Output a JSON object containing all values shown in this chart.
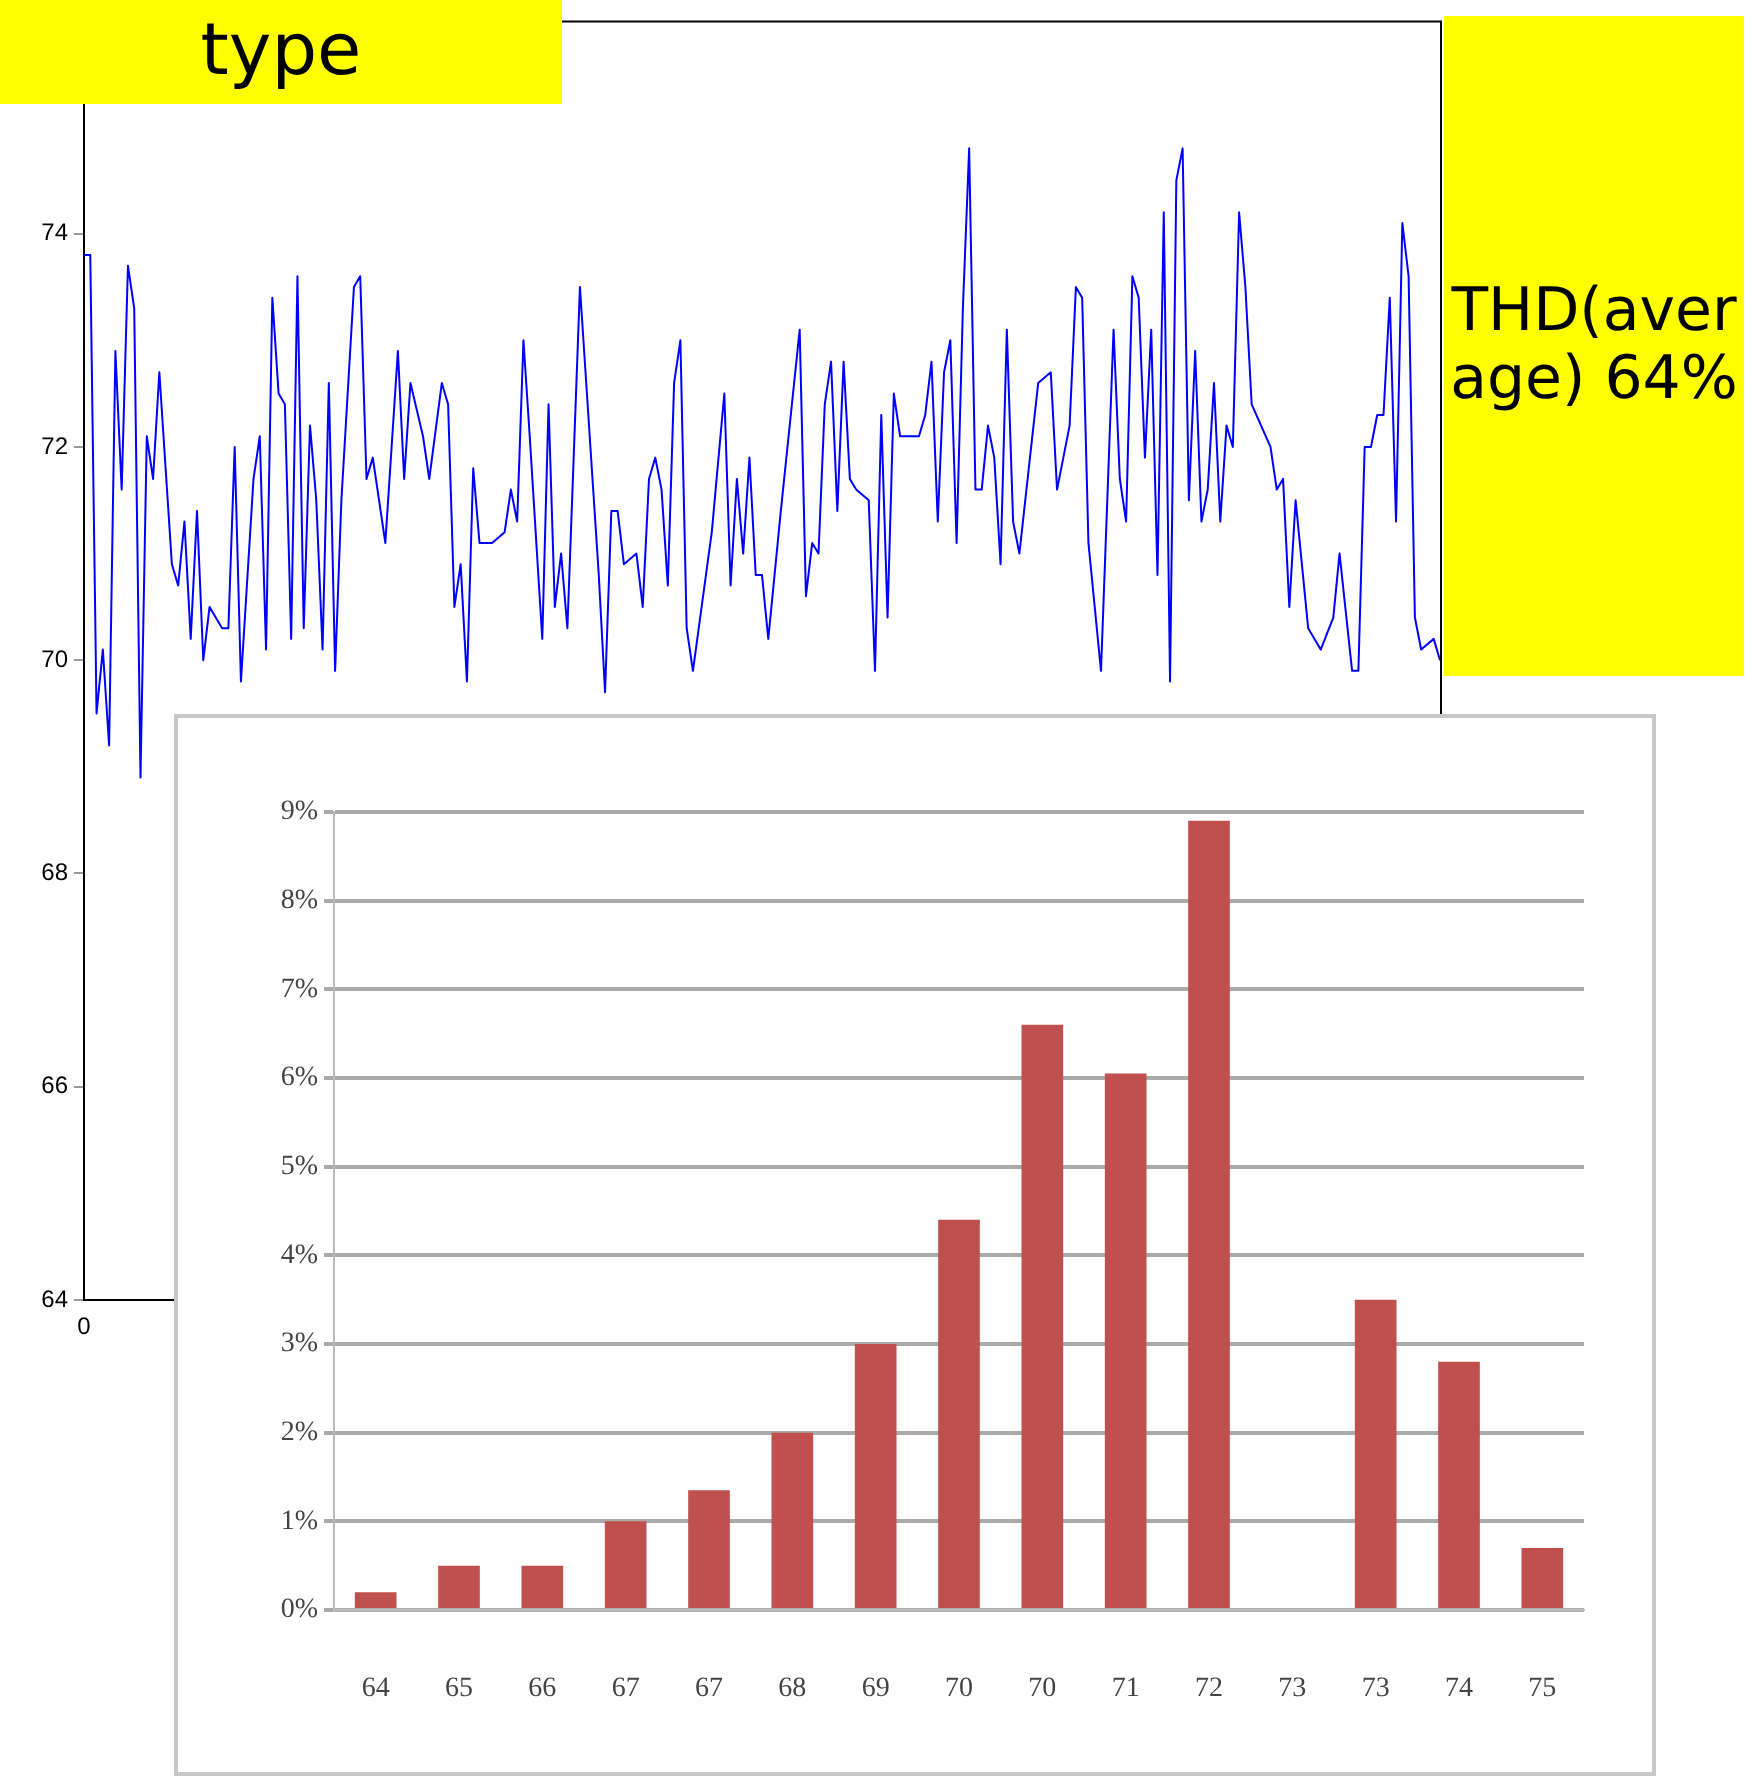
{
  "chart_data": [
    {
      "type": "line",
      "annotations": [
        "type",
        "0"
      ],
      "ylim": [
        64,
        76
      ],
      "categories": [
        null,
        null,
        null,
        null,
        null,
        null,
        null,
        null,
        null,
        null,
        null,
        null,
        null,
        null,
        null,
        null,
        null,
        null,
        null,
        null,
        null,
        null,
        null,
        null,
        null,
        null,
        null,
        null,
        null,
        null,
        null,
        null,
        null,
        null,
        null,
        null,
        null,
        null,
        null,
        null,
        null,
        null,
        null,
        null,
        null,
        null,
        null,
        null,
        null,
        null,
        null,
        null,
        null,
        null,
        null,
        null,
        null,
        null,
        null,
        null,
        null,
        null,
        null,
        null,
        null,
        null,
        null,
        null,
        null,
        null,
        null,
        null,
        null,
        null,
        null,
        null,
        null,
        null,
        null,
        null,
        null,
        null,
        null,
        null,
        null,
        null,
        null,
        null,
        null,
        null,
        null,
        null,
        null,
        null,
        null,
        null,
        null,
        null,
        null,
        null,
        null,
        null,
        null,
        null,
        null,
        null,
        null,
        null,
        null,
        null,
        null,
        null,
        null,
        null,
        null,
        null,
        null,
        null,
        null,
        null,
        null,
        null,
        null,
        null,
        null,
        null,
        null,
        null,
        null,
        null,
        null,
        null,
        null,
        null,
        null,
        null,
        null,
        null,
        null,
        null,
        null,
        null,
        null,
        null,
        null,
        null,
        null,
        null,
        null,
        null,
        null,
        null,
        null,
        null,
        null,
        null,
        null,
        null,
        null,
        null,
        null,
        null,
        null,
        null,
        null,
        null,
        null,
        null,
        null,
        null,
        null,
        null,
        null,
        null,
        null,
        null,
        null,
        null,
        null,
        null,
        null,
        null,
        null,
        null,
        null,
        null,
        null,
        null,
        null,
        null,
        null,
        null,
        null,
        null,
        null,
        null,
        null,
        null,
        null,
        null,
        null,
        null,
        null,
        null,
        null,
        null,
        null,
        null,
        null,
        null,
        null,
        null,
        null,
        null,
        null,
        null,
        null
      ],
      "yticks": [
        64,
        66,
        68,
        70,
        72,
        74
      ],
      "legend": false,
      "series": [
        {
          "color": "#0000ff",
          "values": [
            73.8,
            73.8,
            69.5,
            70.1,
            69.2,
            72.9,
            71.6,
            73.7,
            73.3,
            68.9,
            72.1,
            71.7,
            72.7,
            null,
            70.9,
            70.7,
            71.3,
            70.2,
            71.4,
            70.0,
            70.5,
            null,
            70.3,
            70.3,
            72.0,
            69.8,
            null,
            71.7,
            72.1,
            70.1,
            73.4,
            72.5,
            72.4,
            70.2,
            73.6,
            70.3,
            72.2,
            71.5,
            70.1,
            72.6,
            69.9,
            71.5,
            null,
            73.5,
            73.6,
            71.7,
            71.9,
            null,
            71.1,
            null,
            72.9,
            71.7,
            72.6,
            null,
            72.1,
            71.7,
            null,
            72.6,
            72.4,
            70.5,
            70.9,
            69.8,
            71.8,
            71.1,
            null,
            71.1,
            null,
            71.2,
            71.6,
            71.3,
            73.0,
            72.1,
            null,
            70.2,
            72.4,
            70.5,
            71.0,
            70.3,
            null,
            73.5,
            null,
            null,
            70.8,
            69.7,
            71.4,
            71.4,
            70.9,
            null,
            71.0,
            70.5,
            71.7,
            71.9,
            71.6,
            70.7,
            72.6,
            73.0,
            70.3,
            69.9,
            null,
            null,
            71.2,
            null,
            72.5,
            70.7,
            71.7,
            71.0,
            71.9,
            70.8,
            70.8,
            70.2,
            null,
            71.4,
            null,
            null,
            73.1,
            70.6,
            71.1,
            71.0,
            72.4,
            72.8,
            71.4,
            72.8,
            71.7,
            71.6,
            null,
            71.5,
            69.9,
            72.3,
            70.4,
            72.5,
            72.1,
            null,
            null,
            72.1,
            72.3,
            72.8,
            71.3,
            72.7,
            73.0,
            71.1,
            73.3,
            74.8,
            71.6,
            71.6,
            72.2,
            71.9,
            70.9,
            73.1,
            71.3,
            71.0,
            null,
            null,
            72.6,
            null,
            72.7,
            71.6,
            null,
            72.2,
            73.5,
            73.4,
            71.1,
            null,
            69.9,
            null,
            73.1,
            71.7,
            71.3,
            73.6,
            73.4,
            71.9,
            73.1,
            70.8,
            74.2,
            69.8,
            74.5,
            74.8,
            71.5,
            72.9,
            71.3,
            71.6,
            72.6,
            71.3,
            72.2,
            72.0,
            74.2,
            73.5,
            72.4,
            null,
            null,
            72.0,
            71.6,
            71.7,
            70.5,
            71.5,
            null,
            70.3,
            null,
            70.1,
            null,
            70.4,
            71.0,
            null,
            69.9,
            69.9,
            72.0,
            72.0,
            72.3,
            72.3,
            73.4,
            71.3,
            74.1,
            73.6,
            70.4,
            70.1,
            null,
            70.2,
            70.0
          ]
        }
      ]
    },
    {
      "type": "bar",
      "annotations": [
        "THD(average) 64%"
      ],
      "categories": [
        "64",
        "65",
        "66",
        "67",
        "67",
        "68",
        "69",
        "70",
        "70",
        "71",
        "72",
        "73",
        "73",
        "74",
        "75"
      ],
      "series": [
        {
          "color": "#c0504d",
          "values": [
            0.2,
            0.5,
            0.5,
            1.0,
            1.35,
            2.0,
            3.0,
            4.4,
            6.6,
            6.05,
            8.9,
            null,
            3.5,
            2.8,
            0.7
          ]
        }
      ],
      "ylim": [
        0,
        9
      ],
      "yticks": [
        {
          "value": 0,
          "label": "0%"
        },
        {
          "value": 1,
          "label": "1%"
        },
        {
          "value": 2,
          "label": "2%"
        },
        {
          "value": 3,
          "label": "3%"
        },
        {
          "value": 4,
          "label": "4%"
        },
        {
          "value": 5,
          "label": "5%"
        },
        {
          "value": 6,
          "label": "6%"
        },
        {
          "value": 7,
          "label": "7%"
        },
        {
          "value": 8,
          "label": "8%"
        },
        {
          "value": 9,
          "label": "9%"
        }
      ],
      "grid": "y",
      "legend": false
    }
  ]
}
